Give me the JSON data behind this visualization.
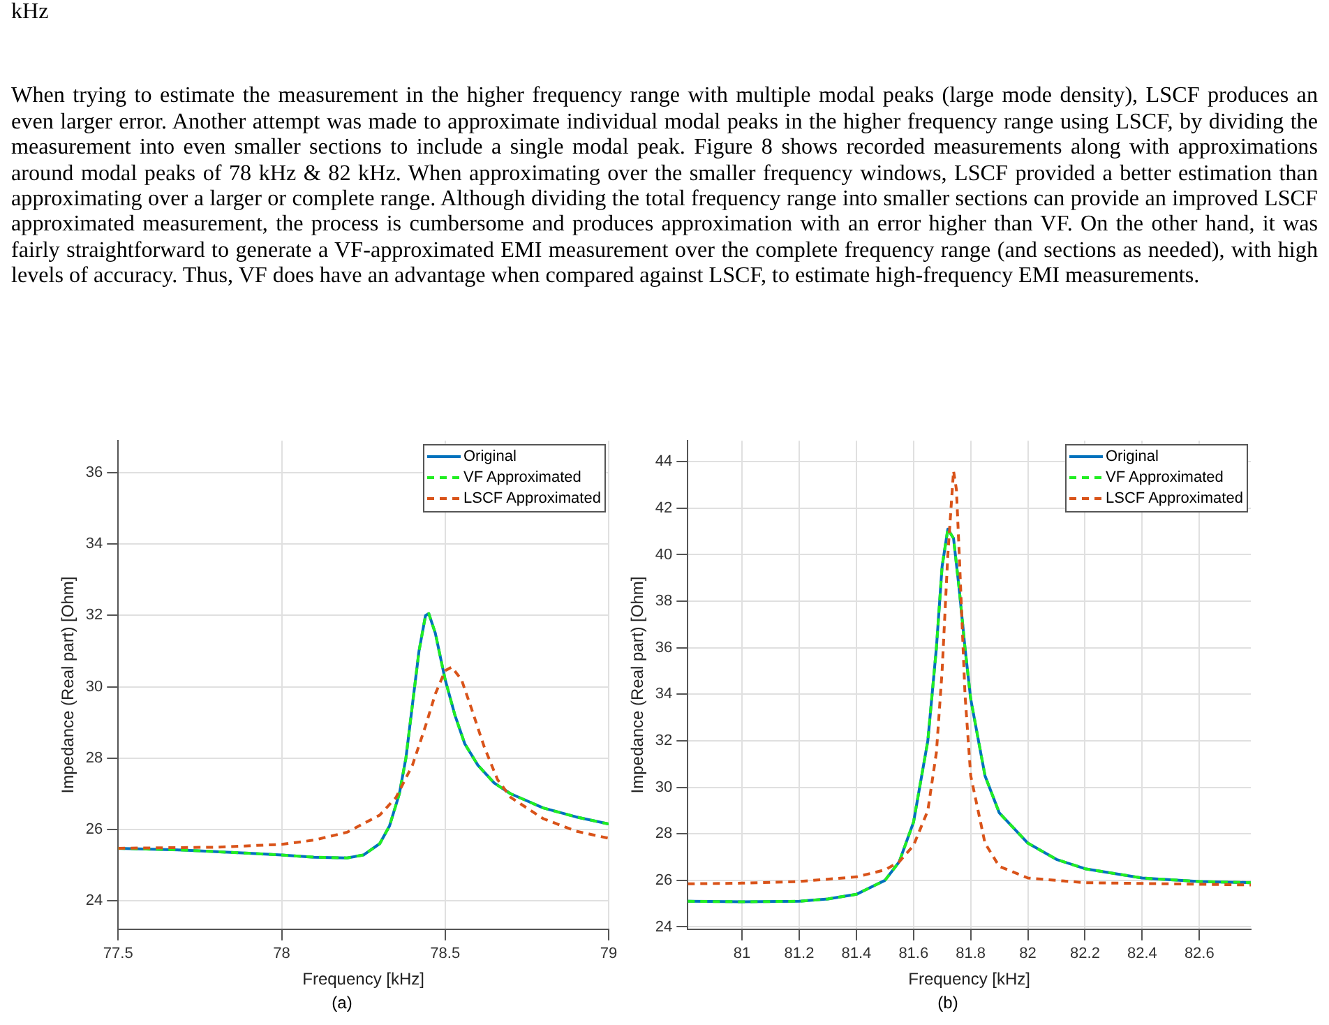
{
  "chart_data": [
    {
      "type": "line",
      "xlabel": "Frequency [kHz]",
      "ylabel": "Impedance (Real part) [Ohm]",
      "annotations": [
        "kHz",
        "When trying to estimate the measurement in the higher frequency range with multiple modal peaks (large mode density), LSCF produces an even larger error. Another attempt was made to approximate individual modal peaks in the higher frequency range using LSCF, by dividing the measurement into even smaller sections to include a single modal peak. Figure 8 shows recorded measurements along with approximations around modal peaks of 78 kHz & 82 kHz. When approximating over the smaller frequency windows, LSCF provided a better estimation than approximating over a larger or complete range. Although dividing the total frequency range into smaller sections can provide an improved LSCF approximated measurement, the process is cumbersome and produces approximation with an error higher than VF. On the other hand, it was fairly straightforward to generate a VF-approximated EMI measurement over the complete frequency range (and sections as needed), with high levels of accuracy. Thus, VF does have an advantage when compared against LSCF, to estimate high-frequency EMI measurements.",
        "(a)"
      ],
      "xlim": [
        77.5,
        79
      ],
      "xticks": [
        77.5,
        78,
        78.5,
        79
      ],
      "ylim": [
        23.2,
        36.9
      ],
      "yticks": [
        24,
        26,
        28,
        30,
        32,
        34,
        36
      ],
      "grid": true,
      "legend": "top right",
      "series": [
        {
          "name": "Original",
          "color": "#0072bd",
          "line_style": "solid",
          "x": [
            77.5,
            77.7,
            77.9,
            78.0,
            78.1,
            78.2,
            78.25,
            78.3,
            78.33,
            78.36,
            78.38,
            78.4,
            78.42,
            78.44,
            78.45,
            78.47,
            78.5,
            78.53,
            78.56,
            78.6,
            78.65,
            78.7,
            78.8,
            78.9,
            79.0
          ],
          "values": [
            25.47,
            25.42,
            25.33,
            25.28,
            25.22,
            25.2,
            25.28,
            25.6,
            26.1,
            27.0,
            28.0,
            29.5,
            31.0,
            32.0,
            32.05,
            31.5,
            30.2,
            29.2,
            28.4,
            27.8,
            27.3,
            27.0,
            26.6,
            26.35,
            26.15
          ]
        },
        {
          "name": "VF Approximated",
          "color": "#22ee22",
          "line_style": "dashed",
          "x": [
            77.5,
            77.7,
            77.9,
            78.0,
            78.1,
            78.2,
            78.25,
            78.3,
            78.33,
            78.36,
            78.38,
            78.4,
            78.42,
            78.44,
            78.45,
            78.47,
            78.5,
            78.53,
            78.56,
            78.6,
            78.65,
            78.7,
            78.8,
            78.9,
            79.0
          ],
          "values": [
            25.47,
            25.42,
            25.33,
            25.28,
            25.22,
            25.2,
            25.28,
            25.6,
            26.1,
            27.0,
            28.0,
            29.5,
            31.0,
            32.0,
            32.05,
            31.5,
            30.2,
            29.2,
            28.4,
            27.8,
            27.3,
            27.0,
            26.6,
            26.35,
            26.15
          ]
        },
        {
          "name": "LSCF Approximated",
          "color": "#d95319",
          "line_style": "dashed",
          "x": [
            77.5,
            77.8,
            78.0,
            78.1,
            78.2,
            78.3,
            78.35,
            78.4,
            78.44,
            78.47,
            78.5,
            78.52,
            78.55,
            78.58,
            78.62,
            78.66,
            78.7,
            78.8,
            78.9,
            79.0
          ],
          "values": [
            25.47,
            25.5,
            25.58,
            25.7,
            25.92,
            26.4,
            26.9,
            27.8,
            28.9,
            29.8,
            30.45,
            30.55,
            30.2,
            29.4,
            28.3,
            27.4,
            26.9,
            26.3,
            25.95,
            25.75
          ]
        }
      ]
    },
    {
      "type": "line",
      "xlabel": "Frequency [kHz]",
      "ylabel": "Impedance (Real part) [Ohm]",
      "annotations": [
        "(b)"
      ],
      "xlim": [
        80.81,
        82.78
      ],
      "xticks": [
        81,
        81.2,
        81.4,
        81.6,
        81.8,
        82,
        82.2,
        82.4,
        82.6
      ],
      "ylim": [
        23.9,
        44.9
      ],
      "yticks": [
        24,
        26,
        28,
        30,
        32,
        34,
        36,
        38,
        40,
        42,
        44
      ],
      "grid": true,
      "legend": "top right",
      "series": [
        {
          "name": "Original",
          "color": "#0072bd",
          "line_style": "solid",
          "x": [
            80.81,
            81.0,
            81.2,
            81.3,
            81.4,
            81.5,
            81.55,
            81.6,
            81.65,
            81.68,
            81.7,
            81.72,
            81.74,
            81.76,
            81.78,
            81.8,
            81.85,
            81.9,
            82.0,
            82.1,
            82.2,
            82.4,
            82.6,
            82.78
          ],
          "values": [
            25.1,
            25.08,
            25.1,
            25.2,
            25.4,
            26.0,
            26.8,
            28.5,
            32.0,
            36.0,
            39.5,
            41.1,
            40.7,
            38.5,
            36.0,
            33.8,
            30.5,
            28.9,
            27.6,
            26.9,
            26.5,
            26.1,
            25.95,
            25.9
          ]
        },
        {
          "name": "VF Approximated",
          "color": "#22ee22",
          "line_style": "dashed",
          "x": [
            80.81,
            81.0,
            81.2,
            81.3,
            81.4,
            81.5,
            81.55,
            81.6,
            81.65,
            81.68,
            81.7,
            81.72,
            81.74,
            81.76,
            81.78,
            81.8,
            81.85,
            81.9,
            82.0,
            82.1,
            82.2,
            82.4,
            82.6,
            82.78
          ],
          "values": [
            25.1,
            25.08,
            25.1,
            25.2,
            25.4,
            26.0,
            26.8,
            28.5,
            32.0,
            36.0,
            39.5,
            41.1,
            40.7,
            38.5,
            36.0,
            33.8,
            30.5,
            28.9,
            27.6,
            26.9,
            26.5,
            26.1,
            25.95,
            25.9
          ]
        },
        {
          "name": "LSCF Approximated",
          "color": "#d95319",
          "line_style": "dashed",
          "x": [
            80.81,
            81.0,
            81.2,
            81.4,
            81.5,
            81.55,
            81.6,
            81.65,
            81.68,
            81.7,
            81.72,
            81.74,
            81.75,
            81.76,
            81.78,
            81.8,
            81.85,
            81.9,
            82.0,
            82.2,
            82.5,
            82.78
          ],
          "values": [
            25.85,
            25.88,
            25.95,
            26.15,
            26.45,
            26.8,
            27.5,
            29.0,
            31.5,
            35.0,
            40.0,
            43.6,
            42.8,
            40.0,
            34.0,
            30.5,
            27.6,
            26.6,
            26.1,
            25.9,
            25.85,
            25.8
          ]
        }
      ]
    }
  ]
}
